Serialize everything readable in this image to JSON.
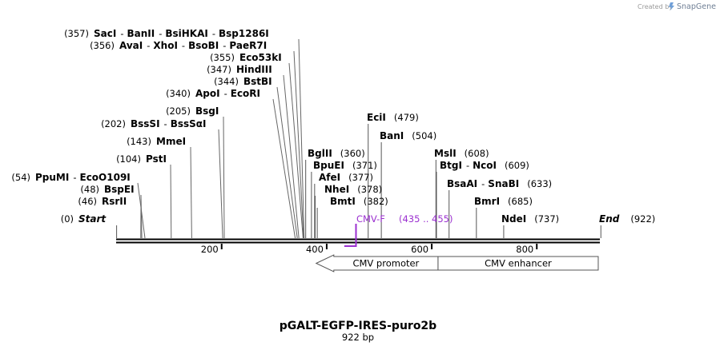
{
  "credit": {
    "prefix": "Created by",
    "brand": "SnapGene"
  },
  "plasmid": {
    "name": "pGALT-EGFP-IRES-puro2b",
    "length_label": "922 bp",
    "length": 922
  },
  "axis": {
    "ticks": [
      {
        "pos": 200,
        "label": "200"
      },
      {
        "pos": 400,
        "label": "400"
      },
      {
        "pos": 600,
        "label": "600"
      },
      {
        "pos": 800,
        "label": "800"
      }
    ]
  },
  "enzymes": [
    {
      "pos": 0,
      "pos_label": "(0)",
      "names": [
        "Start"
      ],
      "italic": true
    },
    {
      "pos": 46,
      "pos_label": "(46)",
      "names": [
        "RsrII"
      ]
    },
    {
      "pos": 48,
      "pos_label": "(48)",
      "names": [
        "BspEI"
      ]
    },
    {
      "pos": 54,
      "pos_label": "(54)",
      "names": [
        "PpuMI",
        "EcoO109I"
      ]
    },
    {
      "pos": 104,
      "pos_label": "(104)",
      "names": [
        "PstI"
      ]
    },
    {
      "pos": 143,
      "pos_label": "(143)",
      "names": [
        "MmeI"
      ]
    },
    {
      "pos": 202,
      "pos_label": "(202)",
      "names": [
        "BssSI",
        "BssSαI"
      ]
    },
    {
      "pos": 205,
      "pos_label": "(205)",
      "names": [
        "BsgI"
      ]
    },
    {
      "pos": 340,
      "pos_label": "(340)",
      "names": [
        "ApoI",
        "EcoRI"
      ]
    },
    {
      "pos": 344,
      "pos_label": "(344)",
      "names": [
        "BstBI"
      ]
    },
    {
      "pos": 347,
      "pos_label": "(347)",
      "names": [
        "HindIII"
      ]
    },
    {
      "pos": 355,
      "pos_label": "(355)",
      "names": [
        "Eco53kI"
      ]
    },
    {
      "pos": 356,
      "pos_label": "(356)",
      "names": [
        "AvaI",
        "XhoI",
        "BsoBI",
        "PaeR7I"
      ]
    },
    {
      "pos": 357,
      "pos_label": "(357)",
      "names": [
        "SacI",
        "BanII",
        "BsiHKAI",
        "Bsp1286I"
      ]
    },
    {
      "pos": 360,
      "pos_label": "(360)",
      "names": [
        "BglII"
      ]
    },
    {
      "pos": 371,
      "pos_label": "(371)",
      "names": [
        "BpuEI"
      ]
    },
    {
      "pos": 377,
      "pos_label": "(377)",
      "names": [
        "AfeI"
      ]
    },
    {
      "pos": 378,
      "pos_label": "(378)",
      "names": [
        "NheI"
      ]
    },
    {
      "pos": 382,
      "pos_label": "(382)",
      "names": [
        "BmtI"
      ]
    },
    {
      "pos": 479,
      "pos_label": "(479)",
      "names": [
        "EciI"
      ]
    },
    {
      "pos": 504,
      "pos_label": "(504)",
      "names": [
        "BanI"
      ]
    },
    {
      "pos": 608,
      "pos_label": "(608)",
      "names": [
        "MslI"
      ]
    },
    {
      "pos": 609,
      "pos_label": "(609)",
      "names": [
        "BtgI",
        "NcoI"
      ]
    },
    {
      "pos": 633,
      "pos_label": "(633)",
      "names": [
        "BsaAI",
        "SnaBI"
      ]
    },
    {
      "pos": 685,
      "pos_label": "(685)",
      "names": [
        "BmrI"
      ]
    },
    {
      "pos": 737,
      "pos_label": "(737)",
      "names": [
        "NdeI"
      ]
    },
    {
      "pos": 922,
      "pos_label": "(922)",
      "names": [
        "End"
      ],
      "italic": true
    }
  ],
  "primer": {
    "name": "CMV-F",
    "range": "(435 .. 455)",
    "start": 435,
    "end": 455,
    "color": "#9b30d0"
  },
  "features": [
    {
      "name": "CMV promoter",
      "start": 380,
      "end": 612,
      "direction": "reverse",
      "arrow": true
    },
    {
      "name": "CMV enhancer",
      "start": 612,
      "end": 917,
      "direction": "reverse",
      "arrow": false
    }
  ]
}
